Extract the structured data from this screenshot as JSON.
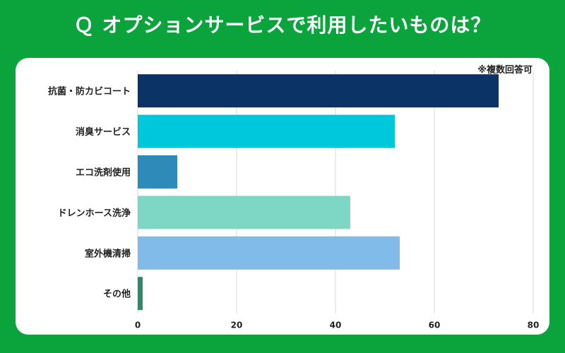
{
  "title": "Ｑ オプションサービスで利用したいものは？",
  "note": "※複数回答可",
  "chart_data": {
    "type": "bar",
    "orientation": "horizontal",
    "categories": [
      "抗菌・防カビコート",
      "消臭サービス",
      "エコ洗剤使用",
      "ドレンホース洗浄",
      "室外機清掃",
      "その他"
    ],
    "values": [
      73,
      52,
      8,
      43,
      53,
      1
    ],
    "colors": [
      "#0b3365",
      "#00c8dc",
      "#2d8ab9",
      "#7ed6c4",
      "#80bbea",
      "#2a8a6a"
    ],
    "xlim": [
      0,
      80
    ],
    "xticks": [
      0,
      20,
      40,
      60,
      80
    ],
    "grid": true,
    "title": "Ｑ オプションサービスで利用したいものは？",
    "xlabel": "",
    "ylabel": ""
  }
}
